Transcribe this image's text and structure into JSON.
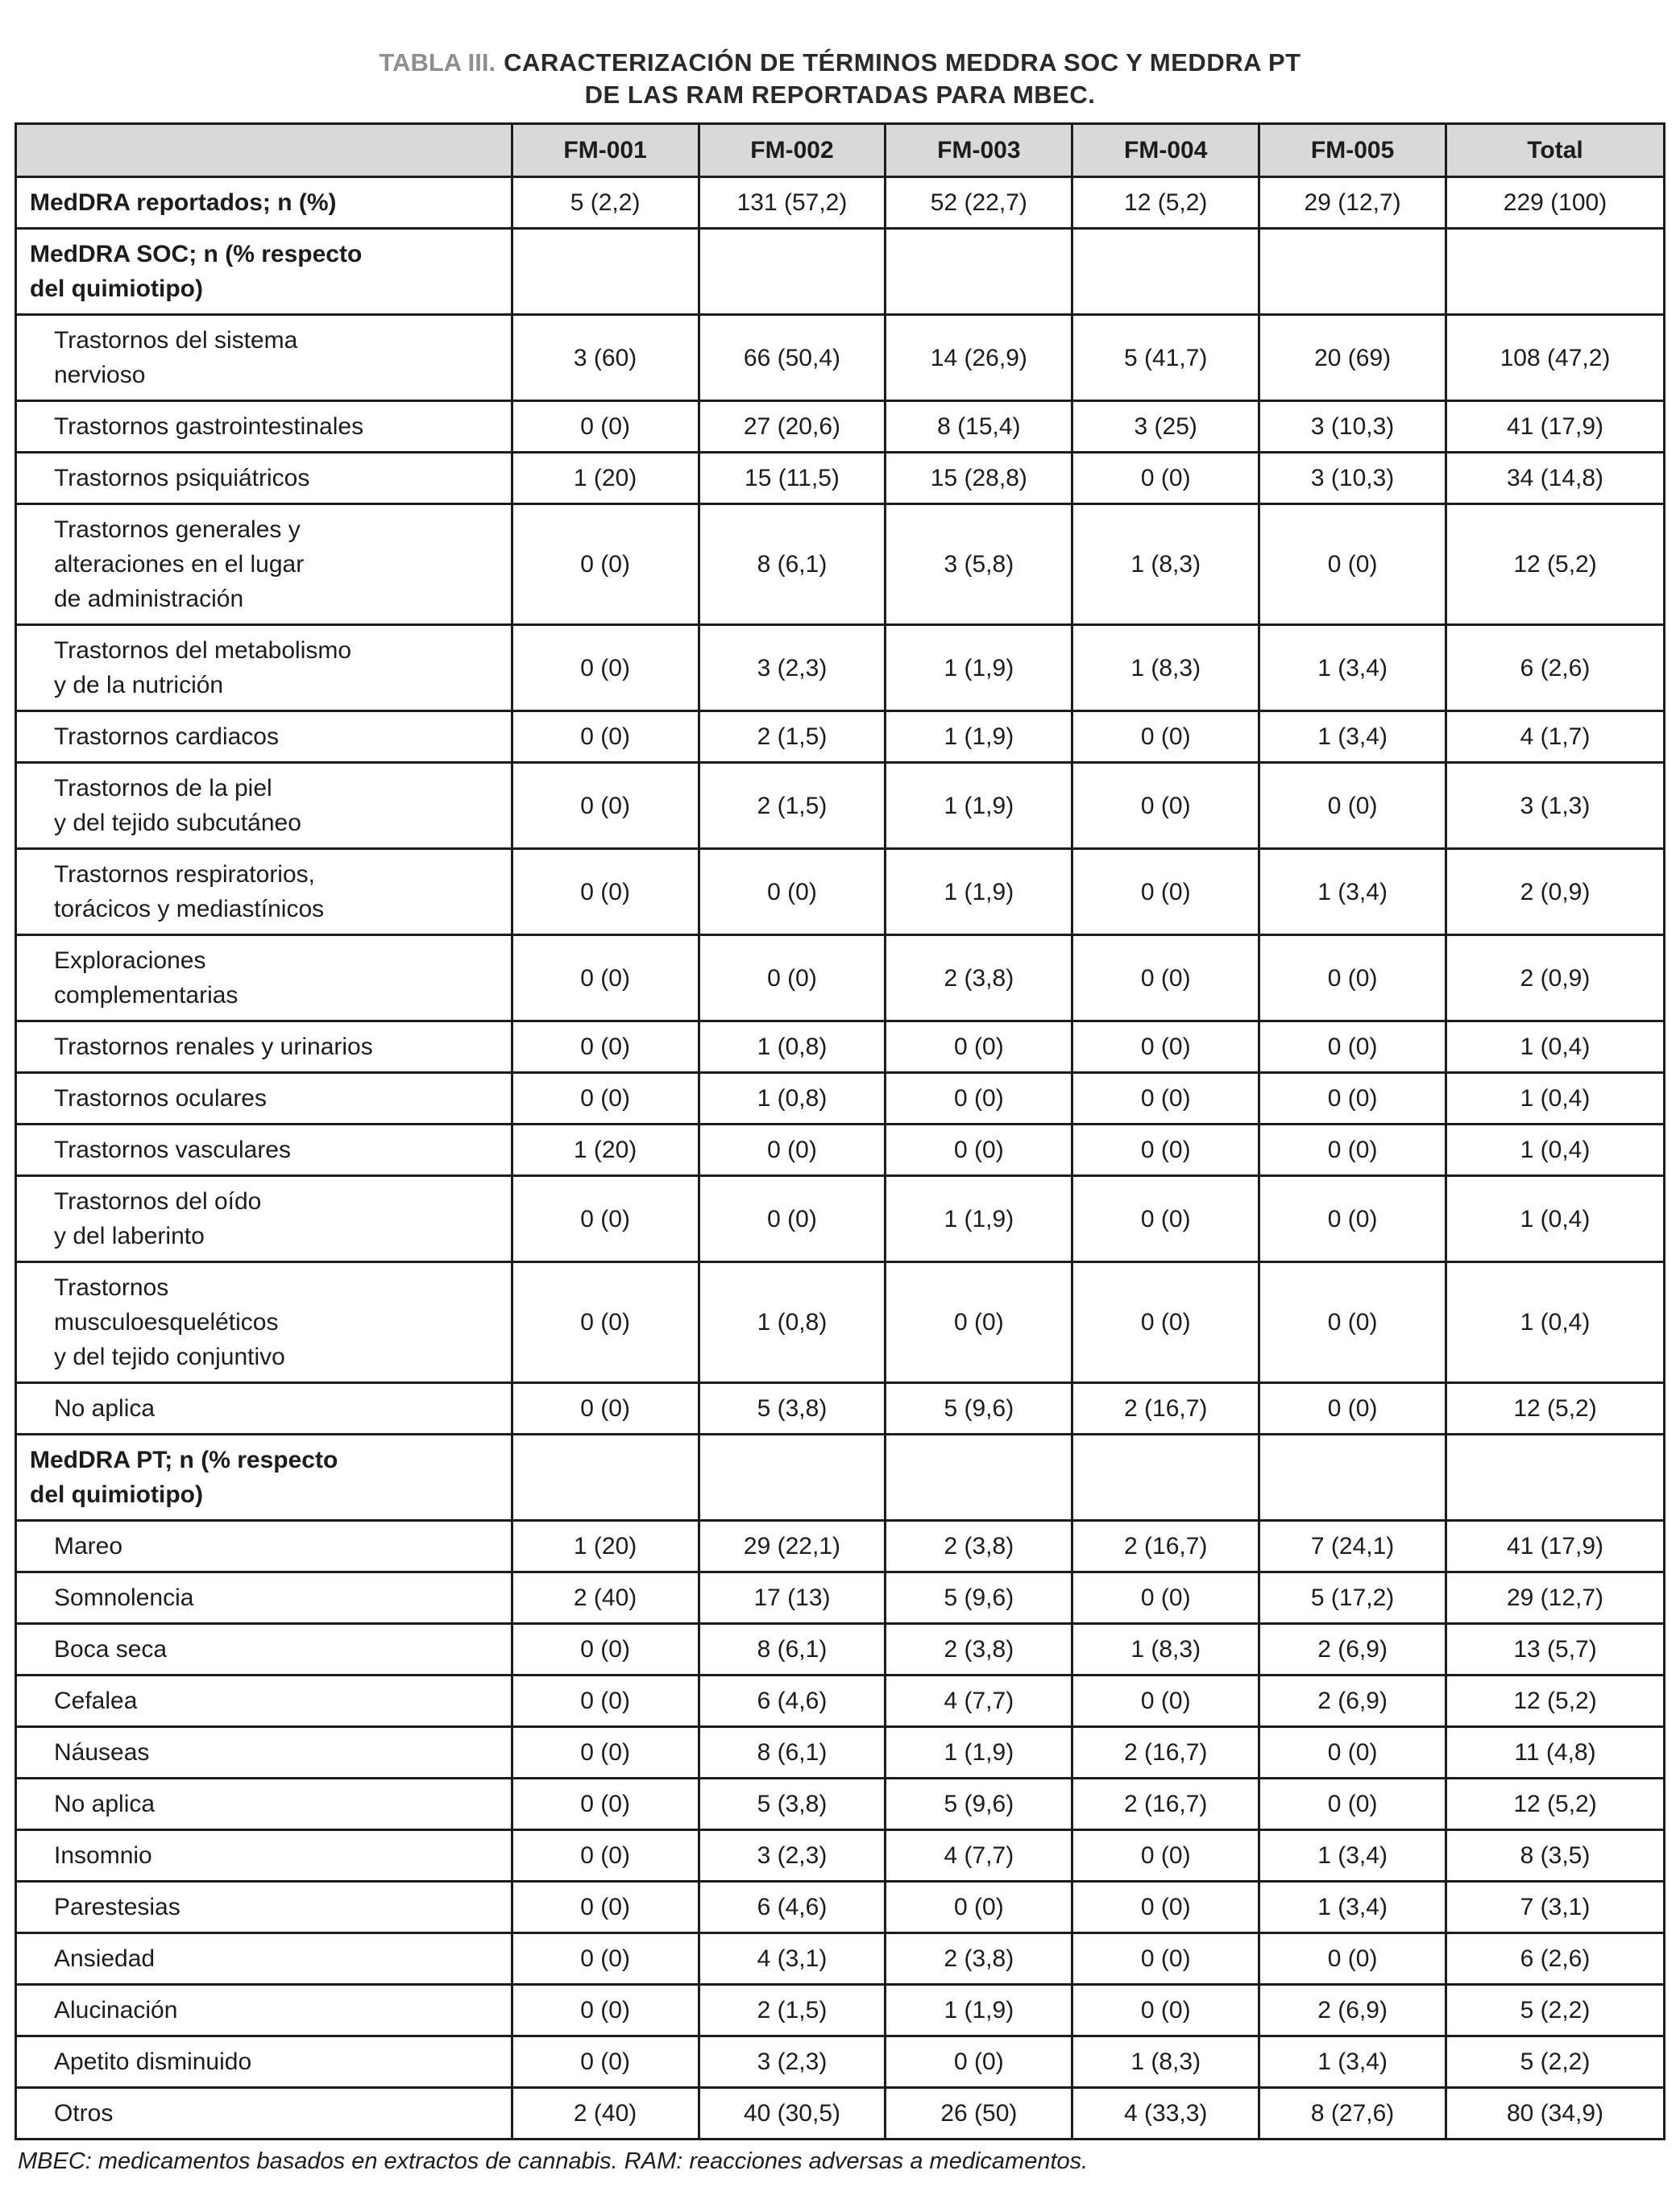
{
  "title": {
    "label": "TABLA III.",
    "text": "CARACTERIZACIÓN DE TÉRMINOS MEDDRA SOC Y MEDDRA PT\nDE LAS RAM REPORTADAS PARA MBEC."
  },
  "table": {
    "columns": [
      "",
      "FM-001",
      "FM-002",
      "FM-003",
      "FM-004",
      "FM-005",
      "Total"
    ],
    "rows": [
      {
        "type": "data-bold",
        "label": "MedDRA reportados; n (%)",
        "values": [
          "5 (2,2)",
          "131 (57,2)",
          "52 (22,7)",
          "12 (5,2)",
          "29 (12,7)",
          "229 (100)"
        ]
      },
      {
        "type": "section",
        "label": "MedDRA SOC; n (% respecto\ndel quimiotipo)",
        "values": [
          "",
          "",
          "",
          "",
          "",
          ""
        ]
      },
      {
        "type": "item",
        "label": "Trastornos del sistema\nnervioso",
        "values": [
          "3 (60)",
          "66 (50,4)",
          "14 (26,9)",
          "5 (41,7)",
          "20 (69)",
          "108 (47,2)"
        ]
      },
      {
        "type": "item",
        "label": "Trastornos gastrointestinales",
        "values": [
          "0 (0)",
          "27 (20,6)",
          "8 (15,4)",
          "3 (25)",
          "3 (10,3)",
          "41 (17,9)"
        ]
      },
      {
        "type": "item",
        "label": "Trastornos psiquiátricos",
        "values": [
          "1 (20)",
          "15 (11,5)",
          "15 (28,8)",
          "0 (0)",
          "3 (10,3)",
          "34 (14,8)"
        ]
      },
      {
        "type": "item",
        "label": "Trastornos generales y\nalteraciones en el lugar\nde administración",
        "values": [
          "0 (0)",
          "8 (6,1)",
          "3 (5,8)",
          "1 (8,3)",
          "0 (0)",
          "12 (5,2)"
        ]
      },
      {
        "type": "item",
        "label": "Trastornos del metabolismo\ny de la nutrición",
        "values": [
          "0 (0)",
          "3 (2,3)",
          "1 (1,9)",
          "1 (8,3)",
          "1 (3,4)",
          "6 (2,6)"
        ]
      },
      {
        "type": "item",
        "label": "Trastornos cardiacos",
        "values": [
          "0 (0)",
          "2 (1,5)",
          "1 (1,9)",
          "0 (0)",
          "1 (3,4)",
          "4 (1,7)"
        ]
      },
      {
        "type": "item",
        "label": "Trastornos de la piel\ny del tejido subcutáneo",
        "values": [
          "0 (0)",
          "2 (1,5)",
          "1 (1,9)",
          "0 (0)",
          "0 (0)",
          "3 (1,3)"
        ]
      },
      {
        "type": "item",
        "label": "Trastornos respiratorios,\ntorácicos y mediastínicos",
        "values": [
          "0 (0)",
          "0 (0)",
          "1 (1,9)",
          "0 (0)",
          "1 (3,4)",
          "2 (0,9)"
        ]
      },
      {
        "type": "item",
        "label": "Exploraciones\ncomplementarias",
        "values": [
          "0 (0)",
          "0 (0)",
          "2 (3,8)",
          "0 (0)",
          "0 (0)",
          "2 (0,9)"
        ]
      },
      {
        "type": "item",
        "label": "Trastornos renales y urinarios",
        "values": [
          "0 (0)",
          "1 (0,8)",
          "0 (0)",
          "0 (0)",
          "0 (0)",
          "1 (0,4)"
        ]
      },
      {
        "type": "item",
        "label": "Trastornos oculares",
        "values": [
          "0 (0)",
          "1 (0,8)",
          "0 (0)",
          "0 (0)",
          "0 (0)",
          "1 (0,4)"
        ]
      },
      {
        "type": "item",
        "label": "Trastornos vasculares",
        "values": [
          "1 (20)",
          "0 (0)",
          "0 (0)",
          "0 (0)",
          "0 (0)",
          "1 (0,4)"
        ]
      },
      {
        "type": "item",
        "label": "Trastornos del oído\ny del laberinto",
        "values": [
          "0 (0)",
          "0 (0)",
          "1 (1,9)",
          "0 (0)",
          "0 (0)",
          "1 (0,4)"
        ]
      },
      {
        "type": "item",
        "label": "Trastornos\nmusculoesqueléticos\ny del tejido conjuntivo",
        "values": [
          "0 (0)",
          "1 (0,8)",
          "0 (0)",
          "0 (0)",
          "0 (0)",
          "1 (0,4)"
        ]
      },
      {
        "type": "item",
        "label": "No aplica",
        "values": [
          "0 (0)",
          "5 (3,8)",
          "5 (9,6)",
          "2 (16,7)",
          "0 (0)",
          "12 (5,2)"
        ]
      },
      {
        "type": "section",
        "label": "MedDRA PT; n (% respecto\ndel quimiotipo)",
        "values": [
          "",
          "",
          "",
          "",
          "",
          ""
        ]
      },
      {
        "type": "item",
        "label": "Mareo",
        "values": [
          "1 (20)",
          "29 (22,1)",
          "2 (3,8)",
          "2 (16,7)",
          "7 (24,1)",
          "41 (17,9)"
        ]
      },
      {
        "type": "item",
        "label": "Somnolencia",
        "values": [
          "2 (40)",
          "17 (13)",
          "5 (9,6)",
          "0 (0)",
          "5 (17,2)",
          "29 (12,7)"
        ]
      },
      {
        "type": "item",
        "label": "Boca seca",
        "values": [
          "0 (0)",
          "8 (6,1)",
          "2 (3,8)",
          "1 (8,3)",
          "2 (6,9)",
          "13 (5,7)"
        ]
      },
      {
        "type": "item",
        "label": "Cefalea",
        "values": [
          "0 (0)",
          "6 (4,6)",
          "4 (7,7)",
          "0 (0)",
          "2 (6,9)",
          "12 (5,2)"
        ]
      },
      {
        "type": "item",
        "label": "Náuseas",
        "values": [
          "0 (0)",
          "8 (6,1)",
          "1 (1,9)",
          "2 (16,7)",
          "0 (0)",
          "11 (4,8)"
        ]
      },
      {
        "type": "item",
        "label": "No aplica",
        "values": [
          "0 (0)",
          "5 (3,8)",
          "5 (9,6)",
          "2 (16,7)",
          "0 (0)",
          "12 (5,2)"
        ]
      },
      {
        "type": "item",
        "label": "Insomnio",
        "values": [
          "0 (0)",
          "3 (2,3)",
          "4 (7,7)",
          "0 (0)",
          "1 (3,4)",
          "8 (3,5)"
        ]
      },
      {
        "type": "item",
        "label": "Parestesias",
        "values": [
          "0 (0)",
          "6 (4,6)",
          "0 (0)",
          "0 (0)",
          "1 (3,4)",
          "7 (3,1)"
        ]
      },
      {
        "type": "item",
        "label": "Ansiedad",
        "values": [
          "0 (0)",
          "4 (3,1)",
          "2 (3,8)",
          "0 (0)",
          "0 (0)",
          "6 (2,6)"
        ]
      },
      {
        "type": "item",
        "label": "Alucinación",
        "values": [
          "0 (0)",
          "2 (1,5)",
          "1 (1,9)",
          "0 (0)",
          "2 (6,9)",
          "5 (2,2)"
        ]
      },
      {
        "type": "item",
        "label": "Apetito disminuido",
        "values": [
          "0 (0)",
          "3 (2,3)",
          "0 (0)",
          "1 (8,3)",
          "1 (3,4)",
          "5 (2,2)"
        ]
      },
      {
        "type": "item",
        "label": "Otros",
        "values": [
          "2 (40)",
          "40 (30,5)",
          "26 (50)",
          "4 (33,3)",
          "8 (27,6)",
          "80 (34,9)"
        ]
      }
    ]
  },
  "footnote": "MBEC: medicamentos basados en extractos de cannabis. RAM: reacciones adversas a medicamentos.",
  "colors": {
    "header_bg": "#d9d9d9",
    "border": "#1c1c1c",
    "title_label_gray": "#8f8f8f",
    "text": "#1c1c1c"
  }
}
